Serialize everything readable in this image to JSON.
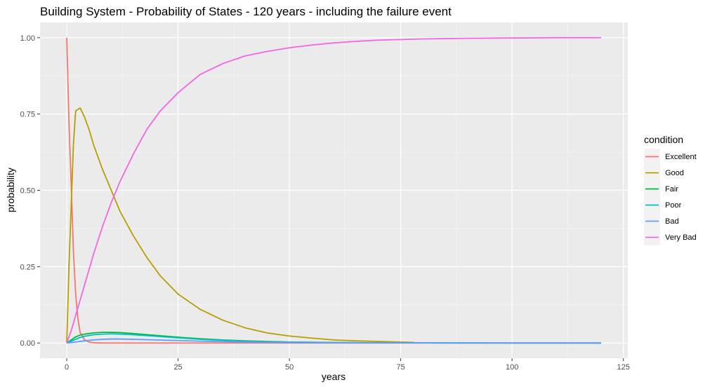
{
  "chart_data": {
    "type": "line",
    "title": "Building System - Probability of States - 120 years - including the failure event",
    "xlabel": "years",
    "ylabel": "probability",
    "xlim": [
      -6,
      126
    ],
    "ylim": [
      -0.05,
      1.05
    ],
    "x_ticks": [
      0,
      25,
      50,
      75,
      100,
      125
    ],
    "x_tick_labels": [
      "0",
      "25",
      "50",
      "75",
      "100",
      "125"
    ],
    "y_ticks": [
      0,
      0.25,
      0.5,
      0.75,
      1.0
    ],
    "y_tick_labels": [
      "0.00",
      "0.25",
      "0.50",
      "0.75",
      "1.00"
    ],
    "grid": true,
    "legend_position": "right",
    "legend_title": "condition",
    "series": [
      {
        "name": "Excellent",
        "color": "#F8766D",
        "x": [
          0,
          0.5,
          1,
          1.5,
          2,
          2.5,
          3,
          4,
          5,
          6,
          8,
          10,
          120
        ],
        "y": [
          1.0,
          0.72,
          0.52,
          0.3,
          0.16,
          0.08,
          0.035,
          0.01,
          0.003,
          0.001,
          0.0,
          0.0,
          0.0
        ]
      },
      {
        "name": "Good",
        "color": "#B79F00",
        "x": [
          0,
          0.5,
          1,
          1.5,
          2,
          3,
          4,
          5,
          6,
          8,
          10,
          12,
          15,
          18,
          21,
          25,
          30,
          35,
          40,
          45,
          50,
          55,
          60,
          65,
          70,
          75,
          78
        ],
        "y": [
          0.0,
          0.25,
          0.45,
          0.65,
          0.76,
          0.77,
          0.74,
          0.7,
          0.65,
          0.57,
          0.5,
          0.43,
          0.35,
          0.28,
          0.22,
          0.16,
          0.11,
          0.075,
          0.05,
          0.033,
          0.023,
          0.016,
          0.01,
          0.007,
          0.005,
          0.003,
          0.002
        ]
      },
      {
        "name": "Fair",
        "color": "#00BA38",
        "x": [
          0,
          1,
          2,
          3,
          4,
          6,
          8,
          10,
          12,
          15,
          20,
          25,
          30,
          35,
          40,
          45,
          50,
          60,
          70,
          80,
          100,
          120
        ],
        "y": [
          0.0,
          0.01,
          0.02,
          0.026,
          0.029,
          0.033,
          0.035,
          0.035,
          0.034,
          0.031,
          0.025,
          0.019,
          0.014,
          0.01,
          0.007,
          0.005,
          0.003,
          0.0015,
          0.0007,
          0.0003,
          0.0,
          0.0
        ]
      },
      {
        "name": "Poor",
        "color": "#00BFC4",
        "x": [
          0,
          1,
          2,
          3,
          4,
          6,
          8,
          10,
          12,
          15,
          20,
          25,
          30,
          35,
          40,
          45,
          50,
          60,
          70,
          80,
          100,
          120
        ],
        "y": [
          0.0,
          0.006,
          0.012,
          0.018,
          0.022,
          0.027,
          0.029,
          0.03,
          0.029,
          0.027,
          0.022,
          0.017,
          0.012,
          0.009,
          0.006,
          0.004,
          0.003,
          0.0013,
          0.0006,
          0.0002,
          0.0,
          0.0
        ]
      },
      {
        "name": "Bad",
        "color": "#619CFF",
        "x": [
          0,
          2,
          4,
          6,
          8,
          10,
          12,
          15,
          20,
          25,
          30,
          40,
          50,
          60,
          80,
          100,
          120
        ],
        "y": [
          0.0,
          0.003,
          0.007,
          0.01,
          0.012,
          0.013,
          0.013,
          0.012,
          0.01,
          0.008,
          0.006,
          0.003,
          0.0015,
          0.0007,
          0.0002,
          0.0,
          0.0
        ]
      },
      {
        "name": "Very Bad",
        "color": "#F564E3",
        "x": [
          0,
          1,
          2,
          3,
          4,
          5,
          6,
          8,
          10,
          12,
          15,
          18,
          21,
          25,
          30,
          35,
          40,
          45,
          50,
          55,
          60,
          65,
          70,
          80,
          90,
          100,
          110,
          120
        ],
        "y": [
          0.0,
          0.04,
          0.09,
          0.14,
          0.19,
          0.24,
          0.29,
          0.38,
          0.46,
          0.53,
          0.62,
          0.7,
          0.76,
          0.82,
          0.88,
          0.915,
          0.94,
          0.955,
          0.967,
          0.976,
          0.983,
          0.988,
          0.992,
          0.996,
          0.998,
          0.999,
          1.0,
          1.0
        ]
      }
    ]
  }
}
